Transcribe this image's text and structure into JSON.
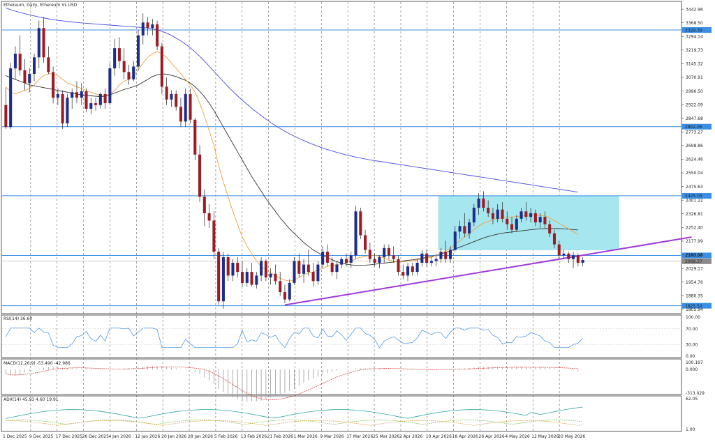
{
  "chart_data": {
    "type": "candlestick",
    "title": "Ethereum, Daily, Ethereum Vs USD",
    "price_levels": [
      {
        "label": "3329.39",
        "value": 3329.39,
        "color": "#3a8ee6"
      },
      {
        "label": "2802.06",
        "value": 2802.06,
        "color": "#3a8ee6"
      },
      {
        "label": "2425.05",
        "value": 2425.05,
        "color": "#3a8ee6"
      },
      {
        "label": "2100.00",
        "value": 2100.0,
        "color": "#3a8ee6"
      },
      {
        "label": "1825.52",
        "value": 1825.52,
        "color": "#3a8ee6"
      }
    ],
    "current_price": {
      "label": "2068.37",
      "value": 2068.37
    },
    "y_ticks": [
      "3442.96",
      "3368.50",
      "3294.14",
      "3219.73",
      "3145.32",
      "3070.91",
      "2996.50",
      "2922.09",
      "2847.68",
      "2773.27",
      "2698.86",
      "2624.46",
      "2550.04",
      "2475.63",
      "2401.22",
      "2326.81",
      "2252.40",
      "2177.99",
      "2103.58",
      "2029.17",
      "1954.76",
      "1880.35",
      "1805.94"
    ],
    "ylim": [
      1790,
      3470
    ],
    "x_ticks": [
      "1 Dec 2025",
      "9 Dec 2025",
      "17 Dec 2025",
      "26 Dec 2025",
      "4 Jan 2026",
      "12 Jan 2026",
      "20 Jan 2026",
      "28 Jan 2026",
      "5 Feb 2026",
      "13 Feb 2026",
      "21 Feb 2026",
      "1 Mar 2026",
      "9 Mar 2026",
      "17 Mar 2026",
      "25 Mar 2026",
      "2 Apr 2026",
      "10 Apr 2026",
      "18 Apr 2026",
      "26 Apr 2026",
      "4 May 2026",
      "12 May 2026",
      "20 May 2026"
    ],
    "candles": [
      [
        2920,
        3015,
        2790,
        2800
      ],
      [
        2800,
        3150,
        2790,
        3120
      ],
      [
        3120,
        3240,
        3060,
        3200
      ],
      [
        3200,
        3300,
        3080,
        3110
      ],
      [
        3110,
        3170,
        3000,
        3040
      ],
      [
        3040,
        3120,
        2990,
        3090
      ],
      [
        3090,
        3200,
        3050,
        3180
      ],
      [
        3180,
        3380,
        3120,
        3340
      ],
      [
        3340,
        3400,
        3150,
        3180
      ],
      [
        3180,
        3240,
        3090,
        3100
      ],
      [
        3100,
        3130,
        2930,
        2960
      ],
      [
        2960,
        3010,
        2920,
        2980
      ],
      [
        2980,
        3000,
        2790,
        2820
      ],
      [
        2820,
        2980,
        2800,
        2960
      ],
      [
        2960,
        3010,
        2900,
        2990
      ],
      [
        2990,
        3050,
        2930,
        2960
      ],
      [
        2960,
        3040,
        2920,
        2995
      ],
      [
        2995,
        3010,
        2880,
        2900
      ],
      [
        2900,
        2960,
        2870,
        2930
      ],
      [
        2930,
        2960,
        2890,
        2920
      ],
      [
        2920,
        2990,
        2900,
        2980
      ],
      [
        2980,
        3010,
        2900,
        2930
      ],
      [
        2930,
        3150,
        2920,
        3120
      ],
      [
        3120,
        3280,
        3080,
        3230
      ],
      [
        3230,
        3290,
        3120,
        3160
      ],
      [
        3160,
        3230,
        3060,
        3100
      ],
      [
        3100,
        3140,
        3030,
        3060
      ],
      [
        3060,
        3160,
        3050,
        3130
      ],
      [
        3130,
        3330,
        3110,
        3300
      ],
      [
        3300,
        3420,
        3250,
        3370
      ],
      [
        3370,
        3400,
        3300,
        3340
      ],
      [
        3340,
        3390,
        3300,
        3360
      ],
      [
        3360,
        3380,
        3220,
        3240
      ],
      [
        3240,
        3260,
        2980,
        3020
      ],
      [
        3020,
        3070,
        2920,
        2950
      ],
      [
        2950,
        3000,
        2910,
        2980
      ],
      [
        2980,
        3000,
        2890,
        2910
      ],
      [
        2910,
        2960,
        2800,
        2830
      ],
      [
        2830,
        3010,
        2800,
        2980
      ],
      [
        2980,
        3010,
        2820,
        2840
      ],
      [
        2840,
        2850,
        2620,
        2650
      ],
      [
        2650,
        2700,
        2390,
        2420
      ],
      [
        2420,
        2460,
        2260,
        2330
      ],
      [
        2330,
        2380,
        2250,
        2290
      ],
      [
        2290,
        2340,
        2080,
        2120
      ],
      [
        2120,
        2140,
        1830,
        1850
      ],
      [
        1850,
        2120,
        1810,
        2090
      ],
      [
        2090,
        2110,
        1960,
        1990
      ],
      [
        1990,
        2080,
        1960,
        2060
      ],
      [
        2060,
        2090,
        1980,
        2010
      ],
      [
        2010,
        2070,
        1930,
        1950
      ],
      [
        1950,
        2030,
        1930,
        2010
      ],
      [
        2010,
        2060,
        1930,
        1940
      ],
      [
        1940,
        2010,
        1920,
        1990
      ],
      [
        1990,
        2090,
        1960,
        2070
      ],
      [
        2070,
        2080,
        1960,
        1980
      ],
      [
        1980,
        2030,
        1940,
        2000
      ],
      [
        2000,
        2050,
        1940,
        1960
      ],
      [
        1960,
        2010,
        1880,
        1900
      ],
      [
        1900,
        1940,
        1840,
        1860
      ],
      [
        1860,
        1970,
        1850,
        1950
      ],
      [
        1950,
        2090,
        1940,
        2070
      ],
      [
        2070,
        2110,
        1980,
        2000
      ],
      [
        2000,
        2080,
        1950,
        2050
      ],
      [
        2050,
        2130,
        1990,
        2010
      ],
      [
        2010,
        2060,
        1930,
        1960
      ],
      [
        1960,
        2070,
        1940,
        2050
      ],
      [
        2050,
        2150,
        2030,
        2120
      ],
      [
        2120,
        2160,
        2040,
        2060
      ],
      [
        2060,
        2090,
        1990,
        2010
      ],
      [
        2010,
        2070,
        1970,
        2050
      ],
      [
        2050,
        2090,
        2030,
        2080
      ],
      [
        2080,
        2110,
        2040,
        2060
      ],
      [
        2060,
        2120,
        2030,
        2100
      ],
      [
        2100,
        2370,
        2080,
        2340
      ],
      [
        2340,
        2360,
        2190,
        2210
      ],
      [
        2210,
        2240,
        2110,
        2130
      ],
      [
        2130,
        2170,
        2060,
        2080
      ],
      [
        2080,
        2110,
        2040,
        2060
      ],
      [
        2060,
        2100,
        2030,
        2090
      ],
      [
        2090,
        2160,
        2060,
        2140
      ],
      [
        2140,
        2160,
        2080,
        2100
      ],
      [
        2100,
        2150,
        2060,
        2080
      ],
      [
        2080,
        2100,
        1990,
        2010
      ],
      [
        2010,
        2050,
        1970,
        1990
      ],
      [
        1990,
        2060,
        1960,
        2040
      ],
      [
        2040,
        2060,
        1990,
        2010
      ],
      [
        2010,
        2080,
        1990,
        2060
      ],
      [
        2060,
        2130,
        2040,
        2110
      ],
      [
        2110,
        2130,
        2040,
        2060
      ],
      [
        2060,
        2090,
        2040,
        2070
      ],
      [
        2070,
        2110,
        2040,
        2080
      ],
      [
        2080,
        2140,
        2060,
        2120
      ],
      [
        2120,
        2180,
        2060,
        2080
      ],
      [
        2080,
        2150,
        2060,
        2130
      ],
      [
        2130,
        2260,
        2120,
        2230
      ],
      [
        2230,
        2290,
        2190,
        2260
      ],
      [
        2260,
        2330,
        2200,
        2220
      ],
      [
        2220,
        2300,
        2190,
        2280
      ],
      [
        2280,
        2380,
        2260,
        2360
      ],
      [
        2360,
        2440,
        2320,
        2410
      ],
      [
        2410,
        2450,
        2340,
        2360
      ],
      [
        2360,
        2400,
        2310,
        2330
      ],
      [
        2330,
        2360,
        2270,
        2300
      ],
      [
        2300,
        2380,
        2280,
        2350
      ],
      [
        2350,
        2390,
        2280,
        2300
      ],
      [
        2300,
        2340,
        2240,
        2270
      ],
      [
        2270,
        2310,
        2220,
        2240
      ],
      [
        2240,
        2320,
        2230,
        2300
      ],
      [
        2300,
        2360,
        2280,
        2340
      ],
      [
        2340,
        2390,
        2290,
        2310
      ],
      [
        2310,
        2360,
        2280,
        2330
      ],
      [
        2330,
        2350,
        2260,
        2280
      ],
      [
        2280,
        2330,
        2250,
        2310
      ],
      [
        2310,
        2340,
        2250,
        2270
      ],
      [
        2270,
        2290,
        2200,
        2220
      ],
      [
        2220,
        2240,
        2140,
        2160
      ],
      [
        2160,
        2180,
        2080,
        2100
      ],
      [
        2100,
        2130,
        2080,
        2110
      ],
      [
        2110,
        2120,
        2060,
        2080
      ],
      [
        2080,
        2120,
        2030,
        2100
      ],
      [
        2100,
        2110,
        2040,
        2060
      ],
      [
        2060,
        2090,
        2040,
        2075
      ]
    ],
    "ma_fast": [
      3020,
      2990,
      2980,
      2990,
      3000,
      3010,
      3030,
      3060,
      3080,
      3090,
      3090,
      3080,
      3060,
      3040,
      3030,
      3020,
      3010,
      3000,
      2990,
      2980,
      2975,
      2970,
      2980,
      3000,
      3030,
      3050,
      3060,
      3080,
      3110,
      3150,
      3180,
      3200,
      3210,
      3200,
      3180,
      3150,
      3120,
      3090,
      3060,
      3030,
      2990,
      2930,
      2860,
      2780,
      2700,
      2590,
      2500,
      2420,
      2340,
      2270,
      2200,
      2150,
      2110,
      2070,
      2040,
      2020,
      2005,
      1990,
      1975,
      1965,
      1960,
      1965,
      1980,
      1995,
      2005,
      2010,
      2020,
      2030,
      2040,
      2045,
      2050,
      2055,
      2060,
      2070,
      2080,
      2090,
      2095,
      2100,
      2100,
      2095,
      2085,
      2075,
      2068,
      2065,
      2065,
      2068,
      2070,
      2075,
      2080,
      2085,
      2090,
      2100,
      2110,
      2125,
      2140,
      2160,
      2180,
      2200,
      2220,
      2240,
      2260,
      2275,
      2285,
      2295,
      2300,
      2305,
      2308,
      2310,
      2312,
      2315,
      2318,
      2320,
      2320,
      2318,
      2315,
      2305,
      2290,
      2275,
      2260,
      2245,
      2230,
      2215
    ],
    "ma_mid": [
      3080,
      3070,
      3060,
      3050,
      3040,
      3030,
      3025,
      3020,
      3015,
      3010,
      3005,
      3000,
      2995,
      2990,
      2985,
      2980,
      2975,
      2972,
      2970,
      2968,
      2966,
      2968,
      2975,
      2985,
      2995,
      3005,
      3012,
      3020,
      3030,
      3045,
      3060,
      3075,
      3085,
      3090,
      3088,
      3082,
      3075,
      3065,
      3055,
      3040,
      3020,
      2995,
      2965,
      2930,
      2890,
      2845,
      2800,
      2755,
      2710,
      2665,
      2620,
      2575,
      2530,
      2490,
      2450,
      2410,
      2375,
      2340,
      2305,
      2275,
      2245,
      2220,
      2195,
      2170,
      2150,
      2130,
      2115,
      2100,
      2088,
      2076,
      2066,
      2058,
      2052,
      2048,
      2046,
      2046,
      2047,
      2049,
      2052,
      2055,
      2058,
      2061,
      2064,
      2067,
      2070,
      2073,
      2076,
      2080,
      2085,
      2090,
      2095,
      2100,
      2108,
      2116,
      2125,
      2135,
      2145,
      2155,
      2165,
      2175,
      2185,
      2195,
      2203,
      2210,
      2216,
      2221,
      2225,
      2228,
      2231,
      2234,
      2237,
      2240,
      2243,
      2245,
      2246,
      2247,
      2247,
      2246,
      2245,
      2243,
      2241,
      2239
    ],
    "ma_slow": [
      3450,
      3440,
      3432,
      3425,
      3418,
      3412,
      3406,
      3400,
      3395,
      3390,
      3386,
      3382,
      3379,
      3376,
      3373,
      3370,
      3368,
      3366,
      3364,
      3362,
      3360,
      3358,
      3356,
      3354,
      3352,
      3350,
      3348,
      3346,
      3344,
      3342,
      3340,
      3336,
      3330,
      3322,
      3312,
      3300,
      3285,
      3270,
      3252,
      3232,
      3210,
      3186,
      3160,
      3132,
      3104,
      3076,
      3048,
      3020,
      2994,
      2970,
      2946,
      2924,
      2902,
      2882,
      2862,
      2843,
      2825,
      2808,
      2792,
      2777,
      2763,
      2750,
      2738,
      2726,
      2715,
      2705,
      2695,
      2686,
      2677,
      2669,
      2662,
      2655,
      2648,
      2642,
      2636,
      2631,
      2626,
      2621,
      2617,
      2613,
      2609,
      2605,
      2601,
      2597,
      2593,
      2589,
      2585,
      2581,
      2577,
      2573,
      2569,
      2565,
      2561,
      2557,
      2553,
      2549,
      2545,
      2541,
      2537,
      2533,
      2529,
      2525,
      2521,
      2517,
      2513,
      2509,
      2505,
      2501,
      2497,
      2493,
      2489,
      2485,
      2481,
      2477,
      2473,
      2469,
      2465,
      2461,
      2457,
      2453,
      2449,
      2445
    ],
    "trendline": {
      "from": [
        59,
        1830
      ],
      "to": [
        145,
        2200
      ]
    },
    "range_box": {
      "x0": 92,
      "x1": 125,
      "y0": 2130,
      "y1": 2425
    },
    "rsi": {
      "title": "RSI(14) 36.60",
      "ticks": [
        "100.00",
        "70.00",
        "30.00",
        "0.00"
      ],
      "levels": [
        70,
        30
      ]
    },
    "macd": {
      "title": "MACD(12,26,9) -53.490 -42.986",
      "ticks": [
        "100.197",
        "0.000",
        "-313.029"
      ]
    },
    "adx": {
      "title": "ADX(14) 45.93 4.60 19.91",
      "ticks": [
        "62.05",
        "1.00"
      ]
    }
  }
}
